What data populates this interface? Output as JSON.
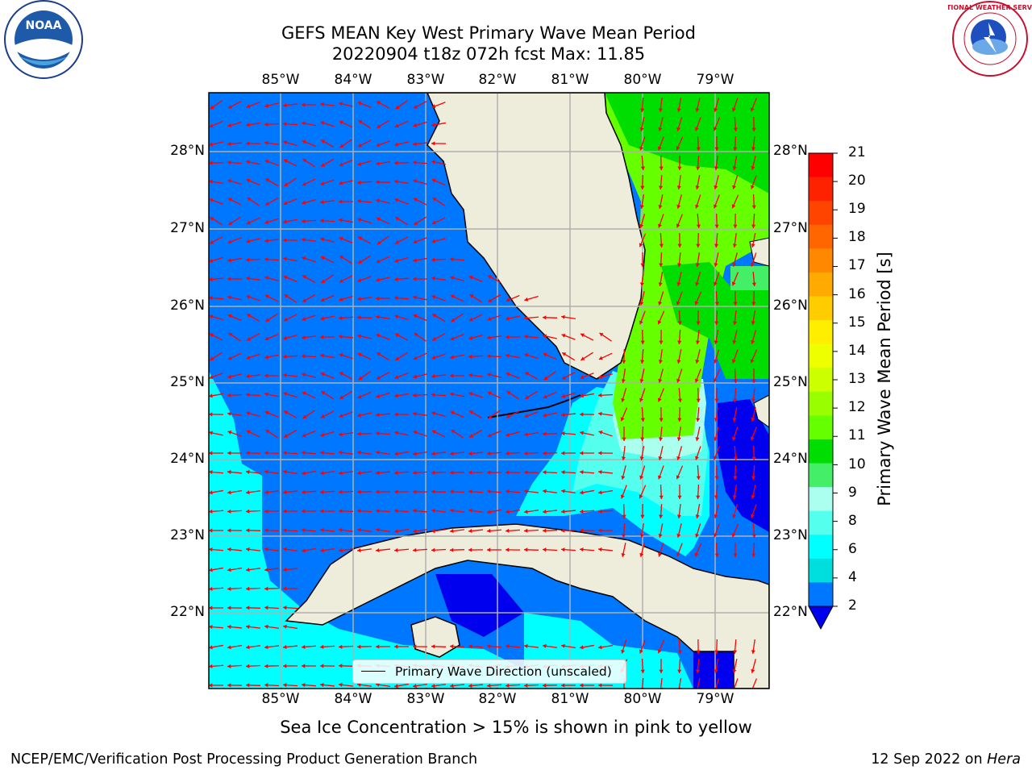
{
  "header": {
    "title_line1": "GEFS MEAN Key West Primary Wave Mean Period",
    "title_line2": "20220904 t18z 072h fcst   Max: 11.85"
  },
  "axes": {
    "lon_labels": [
      "85°W",
      "84°W",
      "83°W",
      "82°W",
      "81°W",
      "80°W",
      "79°W"
    ],
    "lat_labels": [
      "28°N",
      "27°N",
      "26°N",
      "25°N",
      "24°N",
      "23°N",
      "22°N"
    ]
  },
  "colorbar": {
    "label": "Primary Wave Mean Period [s]",
    "ticks": [
      "21",
      "20",
      "19",
      "18",
      "17",
      "16",
      "15",
      "14",
      "13",
      "12",
      "11",
      "10",
      "9",
      "8",
      "6",
      "4",
      "2"
    ],
    "colors": [
      "#ff0000",
      "#ff2200",
      "#ff4400",
      "#ff6600",
      "#ff8800",
      "#ffaa00",
      "#ffcc00",
      "#ffee00",
      "#eeff00",
      "#ccff00",
      "#99ff00",
      "#66ff00",
      "#00dd00",
      "#44ee66",
      "#aaffee",
      "#55ffee",
      "#00ffff",
      "#00dddd",
      "#0077ff"
    ]
  },
  "legend": {
    "label": "Primary Wave Direction (unscaled)"
  },
  "note": "Sea Ice Concentration > 15% is shown in pink to yellow",
  "footer": {
    "left": "NCEP/EMC/Verification Post Processing Product Generation Branch",
    "right_prefix": "12 Sep 2022 on ",
    "right_host": "Hera"
  },
  "logos": {
    "noaa_text": "NOAA",
    "nws_text": "NATIONAL WEATHER SERVICE"
  },
  "colors": {
    "land": "#eeeddb",
    "deep_blue": "#0077ff",
    "navy": "#0000ee",
    "cyan": "#00ffff",
    "light_cyan": "#55ffee",
    "pale_cyan": "#aaffee",
    "green": "#00dd00",
    "light_green": "#66ff00",
    "mid_green": "#44ee66",
    "arrow": "#ff0000",
    "grid": "#b0b0b0"
  }
}
